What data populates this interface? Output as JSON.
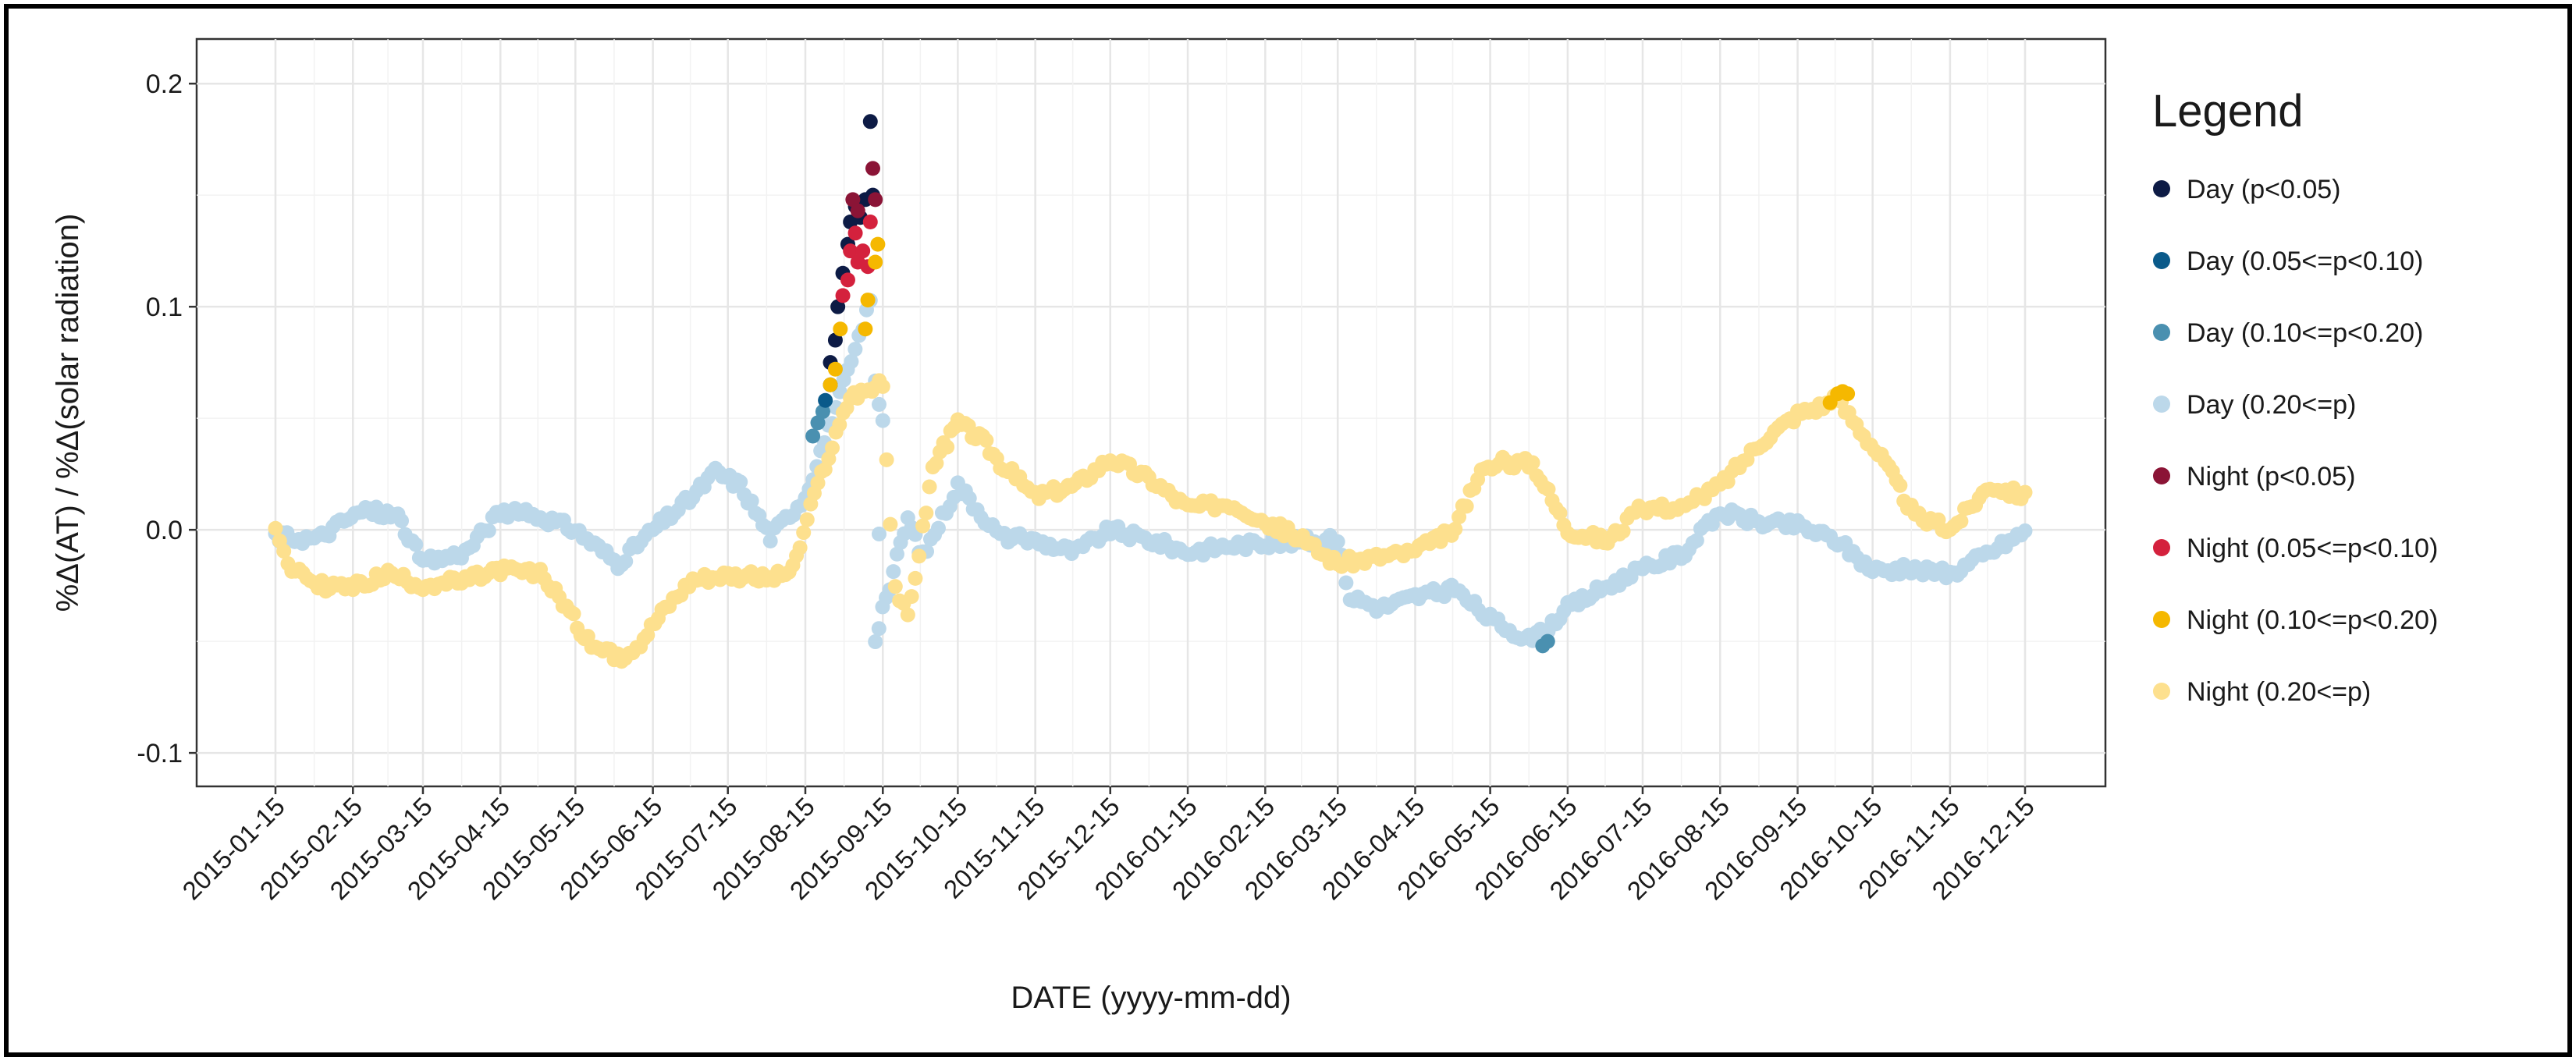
{
  "chart_data": {
    "type": "scatter",
    "title": "",
    "xlabel": "DATE (yyyy-mm-dd)",
    "ylabel": "%Δ(AT) / %Δ(solar radiation)",
    "ylim": [
      -0.115,
      0.22
    ],
    "yticks": [
      -0.1,
      0.0,
      0.1,
      0.2
    ],
    "ytick_labels": [
      "-0.1",
      "0.0",
      "0.1",
      "0.2"
    ],
    "xticks": [
      "2015-01-15",
      "2015-02-15",
      "2015-03-15",
      "2015-04-15",
      "2015-05-15",
      "2015-06-15",
      "2015-07-15",
      "2015-08-15",
      "2015-09-15",
      "2015-10-15",
      "2015-11-15",
      "2015-12-15",
      "2016-01-15",
      "2016-02-15",
      "2016-03-15",
      "2016-04-15",
      "2016-05-15",
      "2016-06-15",
      "2016-07-15",
      "2016-08-15",
      "2016-09-15",
      "2016-10-15",
      "2016-11-15",
      "2016-12-15"
    ],
    "grid": true,
    "legend": {
      "title": "Legend",
      "placement": "right",
      "entries": [
        {
          "name": "Day (p<0.05)",
          "color": "#0d1b45"
        },
        {
          "name": "Day (0.05<=p<0.10)",
          "color": "#0a5a8a"
        },
        {
          "name": "Day (0.10<=p<0.20)",
          "color": "#4a90b0"
        },
        {
          "name": "Day (0.20<=p)",
          "color": "#bcd8ea"
        },
        {
          "name": "Night (p<0.05)",
          "color": "#8b1436"
        },
        {
          "name": "Night (0.05<=p<0.10)",
          "color": "#d4213d"
        },
        {
          "name": "Night (0.10<=p<0.20)",
          "color": "#f5b800"
        },
        {
          "name": "Night (0.20<=p)",
          "color": "#fde08e"
        }
      ]
    },
    "series": [
      {
        "name": "Day (0.20<=p)",
        "points": [
          [
            "2015-01-15",
            -0.003
          ],
          [
            "2015-02-01",
            -0.004
          ],
          [
            "2015-02-10",
            0.003
          ],
          [
            "2015-02-20",
            0.009
          ],
          [
            "2015-03-05",
            0.006
          ],
          [
            "2015-03-15",
            -0.015
          ],
          [
            "2015-04-01",
            -0.01
          ],
          [
            "2015-04-15",
            0.008
          ],
          [
            "2015-05-01",
            0.006
          ],
          [
            "2015-05-15",
            0.0
          ],
          [
            "2015-06-01",
            -0.015
          ],
          [
            "2015-06-15",
            0.0
          ],
          [
            "2015-07-01",
            0.015
          ],
          [
            "2015-07-10",
            0.026
          ],
          [
            "2015-07-20",
            0.02
          ],
          [
            "2015-08-01",
            -0.003
          ],
          [
            "2015-08-15",
            0.015
          ],
          [
            "2015-09-07",
            0.09
          ],
          [
            "2015-09-10",
            0.105
          ],
          [
            "2015-09-12",
            0.065
          ],
          [
            "2015-09-15",
            0.048
          ],
          [
            "2015-09-12",
            -0.049
          ],
          [
            "2015-09-25",
            0.005
          ],
          [
            "2015-10-01",
            -0.012
          ],
          [
            "2015-10-15",
            0.02
          ],
          [
            "2015-11-01",
            -0.003
          ],
          [
            "2015-11-15",
            -0.005
          ],
          [
            "2015-12-01",
            -0.01
          ],
          [
            "2015-12-15",
            0.0
          ],
          [
            "2016-01-01",
            -0.005
          ],
          [
            "2016-01-15",
            -0.01
          ],
          [
            "2016-02-01",
            -0.007
          ],
          [
            "2016-02-15",
            -0.006
          ],
          [
            "2016-03-01",
            -0.005
          ],
          [
            "2016-03-15",
            -0.005
          ],
          [
            "2016-03-20",
            -0.03
          ],
          [
            "2016-04-01",
            -0.035
          ],
          [
            "2016-04-15",
            -0.03
          ],
          [
            "2016-05-01",
            -0.027
          ],
          [
            "2016-05-15",
            -0.04
          ],
          [
            "2016-06-01",
            -0.05
          ],
          [
            "2016-06-15",
            -0.035
          ],
          [
            "2016-07-01",
            -0.025
          ],
          [
            "2016-07-15",
            -0.018
          ],
          [
            "2016-08-01",
            -0.01
          ],
          [
            "2016-08-15",
            0.008
          ],
          [
            "2016-09-01",
            0.003
          ],
          [
            "2016-09-15",
            0.002
          ],
          [
            "2016-10-01",
            -0.005
          ],
          [
            "2016-10-15",
            -0.018
          ],
          [
            "2016-11-01",
            -0.018
          ],
          [
            "2016-11-15",
            -0.02
          ],
          [
            "2016-12-01",
            -0.01
          ],
          [
            "2016-12-15",
            -0.001
          ]
        ]
      },
      {
        "name": "Night (0.20<=p)",
        "points": [
          [
            "2015-01-15",
            0.002
          ],
          [
            "2015-01-20",
            -0.015
          ],
          [
            "2015-02-01",
            -0.025
          ],
          [
            "2015-02-15",
            -0.026
          ],
          [
            "2015-03-01",
            -0.02
          ],
          [
            "2015-03-15",
            -0.025
          ],
          [
            "2015-04-01",
            -0.023
          ],
          [
            "2015-04-15",
            -0.018
          ],
          [
            "2015-05-01",
            -0.02
          ],
          [
            "2015-05-10",
            -0.032
          ],
          [
            "2015-05-20",
            -0.05
          ],
          [
            "2015-06-01",
            -0.058
          ],
          [
            "2015-06-10",
            -0.05
          ],
          [
            "2015-06-20",
            -0.035
          ],
          [
            "2015-07-01",
            -0.022
          ],
          [
            "2015-07-15",
            -0.02
          ],
          [
            "2015-08-01",
            -0.022
          ],
          [
            "2015-08-10",
            -0.018
          ],
          [
            "2015-08-20",
            0.02
          ],
          [
            "2015-09-02",
            0.06
          ],
          [
            "2015-09-15",
            0.065
          ],
          [
            "2015-09-18",
            0.0
          ],
          [
            "2015-09-20",
            -0.025
          ],
          [
            "2015-09-25",
            -0.04
          ],
          [
            "2015-10-01",
            0.0
          ],
          [
            "2015-10-05",
            0.028
          ],
          [
            "2015-10-15",
            0.048
          ],
          [
            "2015-10-25",
            0.04
          ],
          [
            "2015-11-01",
            0.03
          ],
          [
            "2015-11-15",
            0.015
          ],
          [
            "2015-12-01",
            0.02
          ],
          [
            "2015-12-15",
            0.032
          ],
          [
            "2016-01-01",
            0.022
          ],
          [
            "2016-01-15",
            0.01
          ],
          [
            "2016-02-01",
            0.012
          ],
          [
            "2016-02-15",
            0.004
          ],
          [
            "2016-03-01",
            -0.005
          ],
          [
            "2016-03-15",
            -0.015
          ],
          [
            "2016-04-01",
            -0.012
          ],
          [
            "2016-04-15",
            -0.01
          ],
          [
            "2016-05-01",
            0.0
          ],
          [
            "2016-05-10",
            0.025
          ],
          [
            "2016-05-20",
            0.03
          ],
          [
            "2016-06-01",
            0.03
          ],
          [
            "2016-06-15",
            0.0
          ],
          [
            "2016-07-01",
            -0.005
          ],
          [
            "2016-07-15",
            0.01
          ],
          [
            "2016-08-01",
            0.01
          ],
          [
            "2016-08-15",
            0.02
          ],
          [
            "2016-09-01",
            0.04
          ],
          [
            "2016-09-15",
            0.052
          ],
          [
            "2016-10-01",
            0.058
          ],
          [
            "2016-10-10",
            0.045
          ],
          [
            "2016-10-20",
            0.03
          ],
          [
            "2016-11-01",
            0.006
          ],
          [
            "2016-11-15",
            0.0
          ],
          [
            "2016-12-01",
            0.02
          ],
          [
            "2016-12-15",
            0.015
          ]
        ]
      },
      {
        "name": "Day (0.10<=p<0.20)",
        "points": [
          [
            "2015-08-18",
            0.042
          ],
          [
            "2015-08-20",
            0.048
          ],
          [
            "2015-08-22",
            0.053
          ],
          [
            "2016-06-05",
            -0.052
          ],
          [
            "2016-06-07",
            -0.05
          ]
        ]
      },
      {
        "name": "Day (0.05<=p<0.10)",
        "points": [
          [
            "2015-08-23",
            0.058
          ],
          [
            "2015-08-25",
            0.065
          ]
        ]
      },
      {
        "name": "Day (p<0.05)",
        "points": [
          [
            "2015-08-25",
            0.075
          ],
          [
            "2015-08-27",
            0.085
          ],
          [
            "2015-08-28",
            0.1
          ],
          [
            "2015-08-30",
            0.115
          ],
          [
            "2015-09-01",
            0.128
          ],
          [
            "2015-09-02",
            0.138
          ],
          [
            "2015-09-04",
            0.145
          ],
          [
            "2015-09-06",
            0.14
          ],
          [
            "2015-09-08",
            0.148
          ],
          [
            "2015-09-10",
            0.183
          ],
          [
            "2015-09-11",
            0.15
          ]
        ]
      },
      {
        "name": "Night (p<0.05)",
        "points": [
          [
            "2015-09-03",
            0.148
          ],
          [
            "2015-09-05",
            0.143
          ],
          [
            "2015-09-11",
            0.162
          ],
          [
            "2015-09-12",
            0.148
          ]
        ]
      },
      {
        "name": "Night (0.05<=p<0.10)",
        "points": [
          [
            "2015-08-30",
            0.105
          ],
          [
            "2015-09-01",
            0.112
          ],
          [
            "2015-09-02",
            0.125
          ],
          [
            "2015-09-04",
            0.133
          ],
          [
            "2015-09-05",
            0.12
          ],
          [
            "2015-09-07",
            0.125
          ],
          [
            "2015-09-09",
            0.118
          ],
          [
            "2015-09-10",
            0.138
          ]
        ]
      },
      {
        "name": "Night (0.10<=p<0.20)",
        "points": [
          [
            "2015-08-25",
            0.065
          ],
          [
            "2015-08-27",
            0.072
          ],
          [
            "2015-08-29",
            0.09
          ],
          [
            "2015-09-08",
            0.09
          ],
          [
            "2015-09-09",
            0.103
          ],
          [
            "2015-09-12",
            0.12
          ],
          [
            "2015-09-13",
            0.128
          ],
          [
            "2016-09-28",
            0.057
          ],
          [
            "2016-10-01",
            0.061
          ],
          [
            "2016-10-03",
            0.062
          ],
          [
            "2016-10-05",
            0.061
          ]
        ]
      }
    ]
  }
}
